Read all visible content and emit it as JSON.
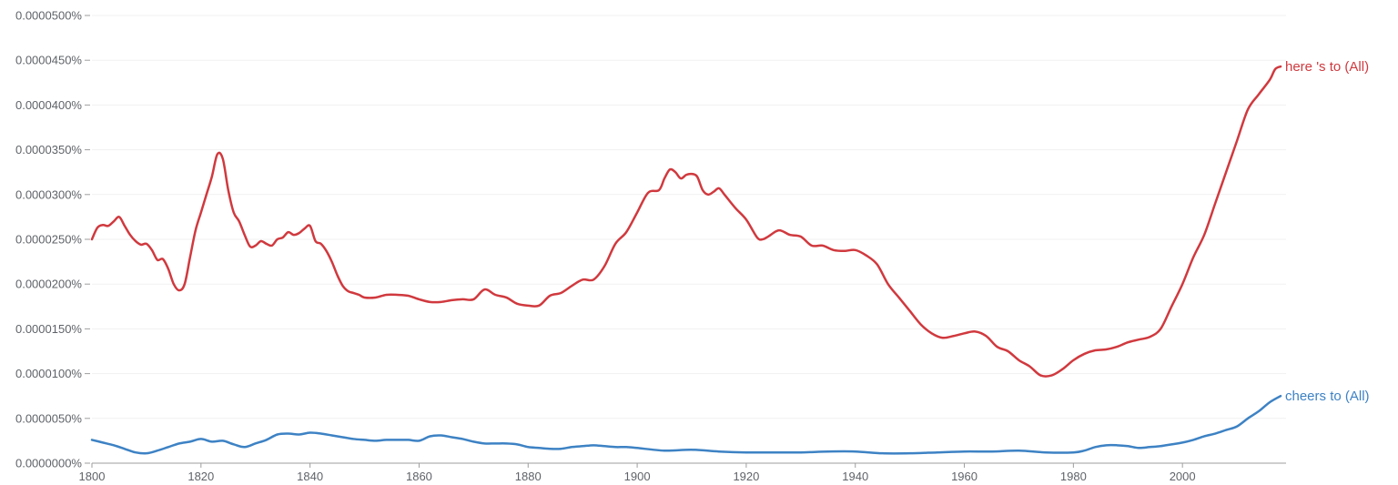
{
  "chart_data": {
    "type": "line",
    "title": "",
    "xlabel": "",
    "ylabel": "",
    "xlim": [
      1800,
      2019
    ],
    "ylim": [
      0,
      5e-07
    ],
    "grid": true,
    "x_ticks": [
      1800,
      1820,
      1840,
      1860,
      1880,
      1900,
      1920,
      1940,
      1960,
      1980,
      2000
    ],
    "x_tick_labels": [
      "1800",
      "1820",
      "1840",
      "1860",
      "1880",
      "1900",
      "1920",
      "1940",
      "1960",
      "1980",
      "2000"
    ],
    "y_ticks": [
      0,
      5e-08,
      1e-07,
      1.5e-07,
      2e-07,
      2.5e-07,
      3e-07,
      3.5e-07,
      4e-07,
      4.5e-07,
      5e-07
    ],
    "y_tick_labels": [
      "0.0000000%",
      "0.0000050%",
      "0.0000100%",
      "0.0000150%",
      "0.0000200%",
      "0.0000250%",
      "0.0000300%",
      "0.0000350%",
      "0.0000400%",
      "0.0000450%",
      "0.0000500%"
    ],
    "legend": "end-of-line labels",
    "series": [
      {
        "name": "here 's to (All)",
        "color": "#d0393e",
        "x": [
          1800,
          1801,
          1802,
          1803,
          1804,
          1805,
          1806,
          1807,
          1808,
          1809,
          1810,
          1811,
          1812,
          1813,
          1814,
          1815,
          1816,
          1817,
          1818,
          1819,
          1820,
          1821,
          1822,
          1823,
          1824,
          1825,
          1826,
          1827,
          1828,
          1829,
          1830,
          1831,
          1832,
          1833,
          1834,
          1835,
          1836,
          1837,
          1838,
          1839,
          1840,
          1841,
          1842,
          1843,
          1844,
          1845,
          1846,
          1847,
          1848,
          1849,
          1850,
          1852,
          1854,
          1856,
          1858,
          1860,
          1862,
          1864,
          1866,
          1868,
          1870,
          1872,
          1874,
          1876,
          1878,
          1880,
          1882,
          1884,
          1886,
          1888,
          1890,
          1892,
          1894,
          1896,
          1898,
          1900,
          1902,
          1904,
          1905,
          1906,
          1907,
          1908,
          1909,
          1910,
          1911,
          1912,
          1913,
          1914,
          1915,
          1916,
          1918,
          1920,
          1922,
          1923,
          1924,
          1926,
          1928,
          1930,
          1932,
          1934,
          1936,
          1938,
          1940,
          1942,
          1944,
          1946,
          1948,
          1950,
          1952,
          1954,
          1956,
          1958,
          1960,
          1962,
          1964,
          1966,
          1968,
          1970,
          1972,
          1974,
          1976,
          1978,
          1980,
          1982,
          1984,
          1986,
          1988,
          1990,
          1992,
          1994,
          1996,
          1998,
          2000,
          2002,
          2004,
          2006,
          2008,
          2010,
          2012,
          2014,
          2016,
          2017,
          2018
        ],
        "values": [
          2.5e-07,
          2.63e-07,
          2.66e-07,
          2.65e-07,
          2.7e-07,
          2.75e-07,
          2.65e-07,
          2.55e-07,
          2.48e-07,
          2.44e-07,
          2.45e-07,
          2.38e-07,
          2.27e-07,
          2.28e-07,
          2.17e-07,
          2e-07,
          1.93e-07,
          2e-07,
          2.3e-07,
          2.6e-07,
          2.8e-07,
          3e-07,
          3.2e-07,
          3.45e-07,
          3.4e-07,
          3.05e-07,
          2.8e-07,
          2.7e-07,
          2.55e-07,
          2.42e-07,
          2.43e-07,
          2.48e-07,
          2.45e-07,
          2.43e-07,
          2.5e-07,
          2.52e-07,
          2.58e-07,
          2.55e-07,
          2.57e-07,
          2.62e-07,
          2.65e-07,
          2.48e-07,
          2.45e-07,
          2.37e-07,
          2.25e-07,
          2.1e-07,
          1.98e-07,
          1.92e-07,
          1.9e-07,
          1.88e-07,
          1.85e-07,
          1.85e-07,
          1.88e-07,
          1.88e-07,
          1.87e-07,
          1.83e-07,
          1.8e-07,
          1.8e-07,
          1.82e-07,
          1.83e-07,
          1.83e-07,
          1.94e-07,
          1.88e-07,
          1.85e-07,
          1.78e-07,
          1.76e-07,
          1.76e-07,
          1.87e-07,
          1.9e-07,
          1.98e-07,
          2.05e-07,
          2.05e-07,
          2.2e-07,
          2.45e-07,
          2.58e-07,
          2.8e-07,
          3.02e-07,
          3.05e-07,
          3.18e-07,
          3.28e-07,
          3.25e-07,
          3.18e-07,
          3.22e-07,
          3.23e-07,
          3.2e-07,
          3.05e-07,
          3e-07,
          3.03e-07,
          3.07e-07,
          3e-07,
          2.85e-07,
          2.72e-07,
          2.52e-07,
          2.5e-07,
          2.53e-07,
          2.6e-07,
          2.55e-07,
          2.53e-07,
          2.43e-07,
          2.43e-07,
          2.38e-07,
          2.37e-07,
          2.38e-07,
          2.32e-07,
          2.22e-07,
          2e-07,
          1.85e-07,
          1.7e-07,
          1.55e-07,
          1.45e-07,
          1.4e-07,
          1.42e-07,
          1.45e-07,
          1.47e-07,
          1.42e-07,
          1.3e-07,
          1.25e-07,
          1.15e-07,
          1.08e-07,
          9.8e-08,
          9.8e-08,
          1.05e-07,
          1.15e-07,
          1.22e-07,
          1.26e-07,
          1.27e-07,
          1.3e-07,
          1.35e-07,
          1.38e-07,
          1.41e-07,
          1.5e-07,
          1.75e-07,
          2e-07,
          2.3e-07,
          2.55e-07,
          2.9e-07,
          3.25e-07,
          3.6e-07,
          3.95e-07,
          4.12e-07,
          4.28e-07,
          4.4e-07,
          4.43e-07
        ],
        "label": "here 's to (All)"
      },
      {
        "name": "cheers to (All)",
        "color": "#3d82c4",
        "x": [
          1800,
          1802,
          1804,
          1806,
          1808,
          1810,
          1812,
          1814,
          1816,
          1818,
          1820,
          1822,
          1824,
          1826,
          1828,
          1830,
          1832,
          1834,
          1836,
          1838,
          1840,
          1842,
          1844,
          1846,
          1848,
          1850,
          1852,
          1854,
          1856,
          1858,
          1860,
          1862,
          1864,
          1866,
          1868,
          1870,
          1872,
          1874,
          1876,
          1878,
          1880,
          1882,
          1884,
          1886,
          1888,
          1890,
          1892,
          1894,
          1896,
          1898,
          1900,
          1905,
          1910,
          1915,
          1920,
          1925,
          1930,
          1935,
          1940,
          1945,
          1950,
          1955,
          1960,
          1965,
          1970,
          1975,
          1980,
          1982,
          1984,
          1986,
          1988,
          1990,
          1992,
          1994,
          1996,
          1998,
          2000,
          2002,
          2004,
          2006,
          2008,
          2010,
          2012,
          2014,
          2016,
          2018
        ],
        "values": [
          2.6e-08,
          2.3e-08,
          2e-08,
          1.6e-08,
          1.2e-08,
          1.1e-08,
          1.4e-08,
          1.8e-08,
          2.2e-08,
          2.4e-08,
          2.7e-08,
          2.4e-08,
          2.5e-08,
          2.1e-08,
          1.8e-08,
          2.2e-08,
          2.6e-08,
          3.2e-08,
          3.3e-08,
          3.2e-08,
          3.4e-08,
          3.3e-08,
          3.1e-08,
          2.9e-08,
          2.7e-08,
          2.6e-08,
          2.5e-08,
          2.6e-08,
          2.6e-08,
          2.6e-08,
          2.5e-08,
          3e-08,
          3.1e-08,
          2.9e-08,
          2.7e-08,
          2.4e-08,
          2.2e-08,
          2.2e-08,
          2.2e-08,
          2.1e-08,
          1.8e-08,
          1.7e-08,
          1.6e-08,
          1.6e-08,
          1.8e-08,
          1.9e-08,
          2e-08,
          1.9e-08,
          1.8e-08,
          1.8e-08,
          1.7e-08,
          1.4e-08,
          1.5e-08,
          1.3e-08,
          1.2e-08,
          1.2e-08,
          1.2e-08,
          1.3e-08,
          1.3e-08,
          1.1e-08,
          1.1e-08,
          1.2e-08,
          1.3e-08,
          1.3e-08,
          1.4e-08,
          1.2e-08,
          1.2e-08,
          1.4e-08,
          1.8e-08,
          2e-08,
          2e-08,
          1.9e-08,
          1.7e-08,
          1.8e-08,
          1.9e-08,
          2.1e-08,
          2.3e-08,
          2.6e-08,
          3e-08,
          3.3e-08,
          3.7e-08,
          4.1e-08,
          5e-08,
          5.8e-08,
          6.8e-08,
          7.5e-08
        ],
        "label": "cheers to (All)"
      }
    ]
  }
}
